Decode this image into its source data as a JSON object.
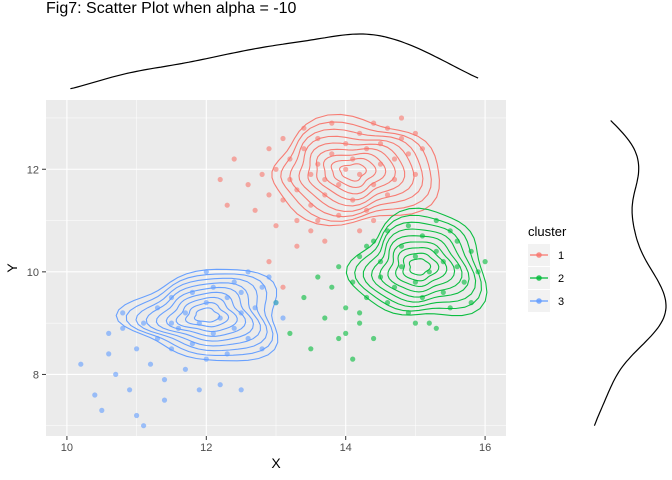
{
  "chart_data": {
    "type": "scatter",
    "title": "Fig7: Scatter Plot when alpha = -10",
    "xlabel": "X",
    "ylabel": "Y",
    "xlim": [
      9.7,
      16.3
    ],
    "ylim": [
      6.8,
      13.35
    ],
    "xticks": [
      10,
      12,
      14,
      16
    ],
    "yticks": [
      8,
      10,
      12
    ],
    "grid": true,
    "legend": {
      "title": "cluster",
      "position": "right",
      "entries": [
        "1",
        "2",
        "3"
      ]
    },
    "marginal_densities": [
      "top",
      "right"
    ],
    "series": [
      {
        "name": "1",
        "color": "#F8766D",
        "center": [
          14.1,
          11.95
        ],
        "spread": [
          0.75,
          0.65
        ],
        "contour_levels": 9,
        "points": [
          [
            12.2,
            11.8
          ],
          [
            12.3,
            11.3
          ],
          [
            12.4,
            12.2
          ],
          [
            12.6,
            11.7
          ],
          [
            12.7,
            11.2
          ],
          [
            12.8,
            11.9
          ],
          [
            12.9,
            11.5
          ],
          [
            12.9,
            12.4
          ],
          [
            13.0,
            10.9
          ],
          [
            13.0,
            12.0
          ],
          [
            13.1,
            11.4
          ],
          [
            13.1,
            12.6
          ],
          [
            13.2,
            11.8
          ],
          [
            13.2,
            12.2
          ],
          [
            13.3,
            11.0
          ],
          [
            13.3,
            11.6
          ],
          [
            13.4,
            12.4
          ],
          [
            13.4,
            12.8
          ],
          [
            13.5,
            11.3
          ],
          [
            13.5,
            11.9
          ],
          [
            13.6,
            12.1
          ],
          [
            13.6,
            12.6
          ],
          [
            13.7,
            11.5
          ],
          [
            13.7,
            11.8
          ],
          [
            13.8,
            12.3
          ],
          [
            13.8,
            12.9
          ],
          [
            13.9,
            11.1
          ],
          [
            13.9,
            11.7
          ],
          [
            14.0,
            12.0
          ],
          [
            14.0,
            12.5
          ],
          [
            14.1,
            11.4
          ],
          [
            14.1,
            12.2
          ],
          [
            14.2,
            12.7
          ],
          [
            14.2,
            11.9
          ],
          [
            14.3,
            11.2
          ],
          [
            14.3,
            12.4
          ],
          [
            14.4,
            11.7
          ],
          [
            14.4,
            12.9
          ],
          [
            14.5,
            12.1
          ],
          [
            14.5,
            12.5
          ],
          [
            14.6,
            11.5
          ],
          [
            14.6,
            12.8
          ],
          [
            14.7,
            12.2
          ],
          [
            14.7,
            11.8
          ],
          [
            14.8,
            12.6
          ],
          [
            14.8,
            13.0
          ],
          [
            14.9,
            12.3
          ],
          [
            15.0,
            11.9
          ],
          [
            15.0,
            12.7
          ],
          [
            15.1,
            12.4
          ],
          [
            13.5,
            10.8
          ],
          [
            13.7,
            10.6
          ],
          [
            13.3,
            10.5
          ],
          [
            14.4,
            11.0
          ],
          [
            12.9,
            10.2
          ],
          [
            13.1,
            9.7
          ],
          [
            13.6,
            11.0
          ],
          [
            14.2,
            10.8
          ]
        ]
      },
      {
        "name": "2",
        "color": "#00BA38",
        "center": [
          15.05,
          10.1
        ],
        "spread": [
          0.6,
          0.65
        ],
        "contour_levels": 9,
        "points": [
          [
            13.4,
            9.5
          ],
          [
            13.6,
            9.9
          ],
          [
            13.7,
            9.1
          ],
          [
            13.8,
            9.7
          ],
          [
            13.9,
            10.1
          ],
          [
            14.0,
            9.3
          ],
          [
            14.0,
            8.8
          ],
          [
            14.1,
            9.8
          ],
          [
            14.2,
            10.3
          ],
          [
            14.2,
            9.0
          ],
          [
            14.3,
            9.5
          ],
          [
            14.4,
            10.6
          ],
          [
            14.4,
            8.7
          ],
          [
            14.5,
            9.9
          ],
          [
            14.5,
            10.2
          ],
          [
            14.6,
            9.4
          ],
          [
            14.6,
            10.8
          ],
          [
            14.7,
            9.7
          ],
          [
            14.8,
            10.1
          ],
          [
            14.8,
            10.5
          ],
          [
            14.9,
            9.2
          ],
          [
            14.9,
            10.9
          ],
          [
            15.0,
            9.8
          ],
          [
            15.0,
            10.3
          ],
          [
            15.1,
            9.5
          ],
          [
            15.1,
            10.7
          ],
          [
            15.2,
            10.0
          ],
          [
            15.2,
            9.0
          ],
          [
            15.3,
            10.4
          ],
          [
            15.3,
            11.0
          ],
          [
            15.4,
            9.6
          ],
          [
            15.4,
            10.2
          ],
          [
            15.5,
            10.8
          ],
          [
            15.5,
            9.3
          ],
          [
            15.6,
            10.1
          ],
          [
            15.6,
            10.6
          ],
          [
            15.7,
            9.8
          ],
          [
            15.8,
            10.4
          ],
          [
            15.8,
            9.4
          ],
          [
            15.9,
            10.0
          ],
          [
            16.0,
            10.2
          ],
          [
            14.2,
            9.2
          ],
          [
            13.9,
            8.7
          ],
          [
            13.5,
            8.5
          ],
          [
            13.2,
            8.8
          ],
          [
            14.1,
            8.3
          ],
          [
            13.0,
            9.4
          ],
          [
            14.3,
            10.5
          ],
          [
            15.0,
            9.0
          ],
          [
            15.3,
            8.9
          ]
        ]
      },
      {
        "name": "3",
        "color": "#619CFF",
        "center": [
          12.0,
          9.15
        ],
        "spread": [
          0.7,
          0.55
        ],
        "contour_levels": 9,
        "points": [
          [
            10.2,
            8.2
          ],
          [
            10.4,
            7.6
          ],
          [
            10.5,
            7.3
          ],
          [
            10.6,
            8.4
          ],
          [
            10.7,
            8.0
          ],
          [
            10.8,
            8.9
          ],
          [
            10.9,
            7.7
          ],
          [
            11.0,
            8.5
          ],
          [
            11.0,
            7.2
          ],
          [
            11.1,
            7.0
          ],
          [
            11.1,
            9.0
          ],
          [
            11.2,
            8.2
          ],
          [
            11.3,
            8.7
          ],
          [
            11.3,
            9.3
          ],
          [
            11.4,
            7.9
          ],
          [
            11.5,
            8.5
          ],
          [
            11.5,
            9.5
          ],
          [
            11.6,
            8.9
          ],
          [
            11.7,
            8.1
          ],
          [
            11.7,
            9.2
          ],
          [
            11.8,
            8.6
          ],
          [
            11.8,
            9.6
          ],
          [
            11.9,
            9.0
          ],
          [
            12.0,
            8.3
          ],
          [
            12.0,
            9.4
          ],
          [
            12.1,
            9.7
          ],
          [
            12.1,
            8.8
          ],
          [
            12.2,
            9.1
          ],
          [
            12.3,
            9.5
          ],
          [
            12.3,
            8.4
          ],
          [
            12.4,
            9.8
          ],
          [
            12.4,
            8.9
          ],
          [
            12.5,
            9.2
          ],
          [
            12.5,
            9.6
          ],
          [
            12.6,
            8.7
          ],
          [
            12.6,
            10.0
          ],
          [
            12.7,
            9.3
          ],
          [
            12.8,
            9.7
          ],
          [
            12.8,
            8.5
          ],
          [
            12.9,
            9.9
          ],
          [
            13.0,
            9.4
          ],
          [
            13.1,
            9.1
          ],
          [
            10.6,
            8.8
          ],
          [
            11.4,
            7.5
          ],
          [
            11.9,
            7.7
          ],
          [
            12.2,
            7.8
          ],
          [
            12.5,
            7.7
          ],
          [
            10.8,
            9.2
          ],
          [
            11.5,
            9.0
          ],
          [
            12.0,
            10.0
          ]
        ]
      }
    ]
  }
}
